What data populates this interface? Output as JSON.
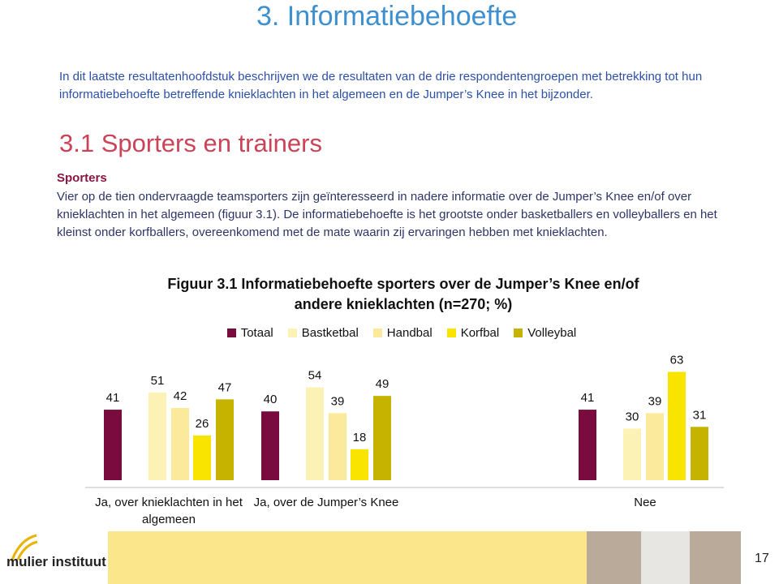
{
  "header": {
    "title": "3.  Informatiebehoefte"
  },
  "intro": "In dit laatste resultatenhoofdstuk beschrijven we de resultaten van de drie respondentengroepen met betrekking tot hun informatiebehoefte betreffende knieklachten in het algemeen en de Jumper’s Knee in het bijzonder.",
  "section": {
    "heading": "3.1  Sporters en trainers",
    "subheading": "Sporters",
    "body": "Vier op de tien ondervraagde teamsporters zijn geïnteresseerd  in nadere informatie over de Jumper’s Knee en/of over knieklachten in het algemeen (figuur 3.1). De informatiebehoefte is het grootste onder basketballers en volleyballers en het kleinst onder korfballers, overeenkomend met de mate waarin zij ervaringen hebben met knieklachten."
  },
  "chart_data": {
    "type": "bar",
    "title": "Figuur 3.1 Informatiebehoefte  sporters over de Jumper’s Knee en/of andere knieklachten (n=270; %)",
    "categories": [
      "Ja, over knieklachten in het algemeen",
      "Ja, over de Jumper’s Knee",
      "Nee"
    ],
    "series": [
      {
        "name": "Totaal",
        "color": "#7a0b3f",
        "values": [
          41,
          40,
          41
        ]
      },
      {
        "name": "Bastketbal",
        "color": "#fdf2b6",
        "values": [
          51,
          54,
          30
        ]
      },
      {
        "name": "Handbal",
        "color": "#fbea9c",
        "values": [
          42,
          39,
          39
        ]
      },
      {
        "name": "Korfbal",
        "color": "#f9e400",
        "values": [
          26,
          18,
          63
        ]
      },
      {
        "name": "Volleybal",
        "color": "#c6b300",
        "values": [
          47,
          49,
          31
        ]
      }
    ]
  },
  "footer": {
    "logo": "mulier instituut",
    "page": "17"
  }
}
